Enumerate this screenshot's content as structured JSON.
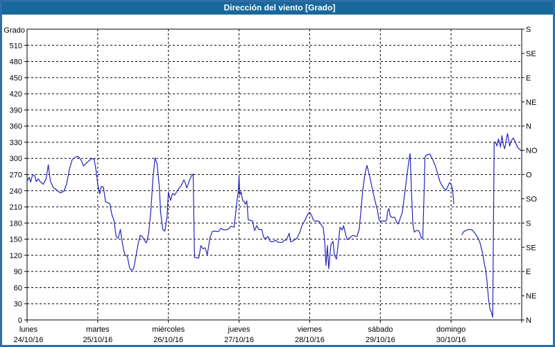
{
  "title": "Dirección del viento [Grado]",
  "colors": {
    "titlebar_bg": "#18689b",
    "titlebar_text": "#ffffff",
    "frame_border": "#2e6da8",
    "plot_bg": "#ffffff",
    "grid": "#000000",
    "axis": "#000000",
    "label_text": "#000000",
    "series_line": "#2323bb"
  },
  "chart_data": {
    "type": "line",
    "title": "Dirección del viento [Grado]",
    "ylabel": "Grado",
    "y_axis_left": {
      "min": 0,
      "max": 540,
      "step": 30,
      "last_labeled": 510
    },
    "y_axis_right": {
      "step": 45,
      "labels": [
        "N",
        "NE",
        "E",
        "SE",
        "S",
        "SO",
        "O",
        "NO",
        "N",
        "NE",
        "E",
        "SE",
        "S"
      ]
    },
    "x_axis": {
      "unit": "days",
      "min": 0,
      "max": 7,
      "days": [
        {
          "name": "lunes",
          "date": "24/10/16"
        },
        {
          "name": "martes",
          "date": "25/10/16"
        },
        {
          "name": "miércoles",
          "date": "26/10/16"
        },
        {
          "name": "jueves",
          "date": "27/10/16"
        },
        {
          "name": "viernes",
          "date": "28/10/16"
        },
        {
          "name": "sábado",
          "date": "29/10/16"
        },
        {
          "name": "domingo",
          "date": "30/10/16"
        }
      ]
    },
    "grid": "dashed",
    "series": [
      {
        "name": "Dirección del viento",
        "points": [
          [
            0.0,
            258
          ],
          [
            0.03,
            265
          ],
          [
            0.05,
            256
          ],
          [
            0.08,
            270
          ],
          [
            0.11,
            268
          ],
          [
            0.13,
            257
          ],
          [
            0.16,
            262
          ],
          [
            0.19,
            256
          ],
          [
            0.23,
            252
          ],
          [
            0.27,
            262
          ],
          [
            0.3,
            288
          ],
          [
            0.33,
            258
          ],
          [
            0.37,
            246
          ],
          [
            0.42,
            241
          ],
          [
            0.47,
            236
          ],
          [
            0.52,
            239
          ],
          [
            0.56,
            252
          ],
          [
            0.6,
            280
          ],
          [
            0.64,
            298
          ],
          [
            0.68,
            302
          ],
          [
            0.72,
            304
          ],
          [
            0.76,
            298
          ],
          [
            0.8,
            286
          ],
          [
            0.83,
            290
          ],
          [
            0.88,
            296
          ],
          [
            0.92,
            300
          ],
          [
            0.95,
            298
          ],
          [
            0.98,
            275
          ],
          [
            1.0,
            252
          ],
          [
            1.03,
            234
          ],
          [
            1.05,
            248
          ],
          [
            1.08,
            247
          ],
          [
            1.11,
            220
          ],
          [
            1.14,
            218
          ],
          [
            1.17,
            216
          ],
          [
            1.2,
            196
          ],
          [
            1.23,
            185
          ],
          [
            1.26,
            155
          ],
          [
            1.29,
            152
          ],
          [
            1.32,
            168
          ],
          [
            1.34,
            150
          ],
          [
            1.37,
            128
          ],
          [
            1.39,
            120
          ],
          [
            1.42,
            118
          ],
          [
            1.45,
            97
          ],
          [
            1.48,
            92
          ],
          [
            1.51,
            96
          ],
          [
            1.54,
            118
          ],
          [
            1.57,
            140
          ],
          [
            1.6,
            157
          ],
          [
            1.63,
            155
          ],
          [
            1.66,
            148
          ],
          [
            1.69,
            143
          ],
          [
            1.72,
            160
          ],
          [
            1.75,
            200
          ],
          [
            1.78,
            260
          ],
          [
            1.81,
            301
          ],
          [
            1.84,
            290
          ],
          [
            1.87,
            250
          ],
          [
            1.89,
            200
          ],
          [
            1.92,
            168
          ],
          [
            1.95,
            165
          ],
          [
            1.98,
            190
          ],
          [
            2.0,
            237
          ],
          [
            2.03,
            222
          ],
          [
            2.06,
            235
          ],
          [
            2.09,
            232
          ],
          [
            2.13,
            241
          ],
          [
            2.18,
            249
          ],
          [
            2.22,
            260
          ],
          [
            2.24,
            254
          ],
          [
            2.26,
            245
          ],
          [
            2.3,
            260
          ],
          [
            2.33,
            268
          ],
          [
            2.35,
            271
          ],
          [
            2.37,
            116
          ],
          [
            2.43,
            115
          ],
          [
            2.46,
            138
          ],
          [
            2.49,
            132
          ],
          [
            2.52,
            134
          ],
          [
            2.55,
            121
          ],
          [
            2.59,
            153
          ],
          [
            2.62,
            164
          ],
          [
            2.66,
            165
          ],
          [
            2.71,
            164
          ],
          [
            2.74,
            170
          ],
          [
            2.79,
            167
          ],
          [
            2.84,
            168
          ],
          [
            2.89,
            174
          ],
          [
            2.93,
            172
          ],
          [
            2.95,
            196
          ],
          [
            2.97,
            220
          ],
          [
            2.99,
            241
          ],
          [
            3.0,
            268
          ],
          [
            3.01,
            232
          ],
          [
            3.03,
            238
          ],
          [
            3.05,
            222
          ],
          [
            3.07,
            220
          ],
          [
            3.09,
            215
          ],
          [
            3.11,
            221
          ],
          [
            3.13,
            186
          ],
          [
            3.16,
            185
          ],
          [
            3.19,
            184
          ],
          [
            3.22,
            166
          ],
          [
            3.25,
            175
          ],
          [
            3.28,
            168
          ],
          [
            3.32,
            168
          ],
          [
            3.35,
            153
          ],
          [
            3.38,
            151
          ],
          [
            3.41,
            155
          ],
          [
            3.44,
            146
          ],
          [
            3.47,
            145
          ],
          [
            3.49,
            146
          ],
          [
            3.52,
            148
          ],
          [
            3.54,
            145
          ],
          [
            3.57,
            144
          ],
          [
            3.61,
            144
          ],
          [
            3.64,
            148
          ],
          [
            3.67,
            148
          ],
          [
            3.71,
            161
          ],
          [
            3.73,
            145
          ],
          [
            3.77,
            147
          ],
          [
            3.82,
            152
          ],
          [
            3.86,
            163
          ],
          [
            3.89,
            175
          ],
          [
            3.94,
            187
          ],
          [
            3.97,
            196
          ],
          [
            4.0,
            200
          ],
          [
            4.03,
            193
          ],
          [
            4.05,
            186
          ],
          [
            4.08,
            183
          ],
          [
            4.11,
            184
          ],
          [
            4.14,
            182
          ],
          [
            4.16,
            177
          ],
          [
            4.19,
            172
          ],
          [
            4.21,
            150
          ],
          [
            4.23,
            101
          ],
          [
            4.25,
            138
          ],
          [
            4.27,
            95
          ],
          [
            4.3,
            140
          ],
          [
            4.33,
            146
          ],
          [
            4.35,
            120
          ],
          [
            4.38,
            113
          ],
          [
            4.41,
            150
          ],
          [
            4.43,
            172
          ],
          [
            4.46,
            167
          ],
          [
            4.48,
            175
          ],
          [
            4.51,
            158
          ],
          [
            4.53,
            149
          ],
          [
            4.56,
            152
          ],
          [
            4.58,
            154
          ],
          [
            4.61,
            157
          ],
          [
            4.64,
            156
          ],
          [
            4.67,
            155
          ],
          [
            4.7,
            168
          ],
          [
            4.72,
            196
          ],
          [
            4.75,
            240
          ],
          [
            4.78,
            270
          ],
          [
            4.81,
            287
          ],
          [
            4.83,
            277
          ],
          [
            4.86,
            260
          ],
          [
            4.89,
            241
          ],
          [
            4.92,
            224
          ],
          [
            4.96,
            203
          ],
          [
            4.98,
            186
          ],
          [
            5.01,
            183
          ],
          [
            5.04,
            184
          ],
          [
            5.07,
            183
          ],
          [
            5.09,
            186
          ],
          [
            5.1,
            200
          ],
          [
            5.12,
            207
          ],
          [
            5.14,
            193
          ],
          [
            5.17,
            190
          ],
          [
            5.2,
            191
          ],
          [
            5.23,
            182
          ],
          [
            5.25,
            178
          ],
          [
            5.28,
            188
          ],
          [
            5.31,
            200
          ],
          [
            5.34,
            230
          ],
          [
            5.37,
            262
          ],
          [
            5.4,
            292
          ],
          [
            5.42,
            309
          ],
          [
            5.44,
            240
          ],
          [
            5.46,
            178
          ],
          [
            5.48,
            163
          ],
          [
            5.51,
            166
          ],
          [
            5.54,
            166
          ],
          [
            5.56,
            161
          ],
          [
            5.58,
            152
          ],
          [
            5.6,
            152
          ],
          [
            5.62,
            240
          ],
          [
            5.63,
            300
          ],
          [
            5.64,
            305
          ],
          [
            5.67,
            307
          ],
          [
            5.7,
            308
          ],
          [
            5.72,
            303
          ],
          [
            5.75,
            295
          ],
          [
            5.78,
            285
          ],
          [
            5.81,
            272
          ],
          [
            5.84,
            258
          ],
          [
            5.87,
            250
          ],
          [
            5.9,
            244
          ],
          [
            5.93,
            241
          ],
          [
            5.95,
            247
          ],
          [
            5.98,
            255
          ],
          [
            6.0,
            252
          ],
          [
            6.02,
            244
          ],
          [
            6.04,
            215
          ],
          [
            6.08,
            null
          ],
          [
            6.15,
            158
          ],
          [
            6.18,
            164
          ],
          [
            6.21,
            166
          ],
          [
            6.24,
            168
          ],
          [
            6.27,
            168
          ],
          [
            6.3,
            167
          ],
          [
            6.33,
            162
          ],
          [
            6.36,
            157
          ],
          [
            6.39,
            150
          ],
          [
            6.41,
            143
          ],
          [
            6.43,
            133
          ],
          [
            6.45,
            122
          ],
          [
            6.47,
            105
          ],
          [
            6.49,
            93
          ],
          [
            6.51,
            70
          ],
          [
            6.53,
            40
          ],
          [
            6.55,
            20
          ],
          [
            6.57,
            15
          ],
          [
            6.59,
            5
          ],
          [
            6.61,
            328
          ],
          [
            6.63,
            330
          ],
          [
            6.65,
            323
          ],
          [
            6.67,
            336
          ],
          [
            6.69,
            328
          ],
          [
            6.7,
            321
          ],
          [
            6.72,
            342
          ],
          [
            6.74,
            325
          ],
          [
            6.76,
            318
          ],
          [
            6.78,
            334
          ],
          [
            6.8,
            346
          ],
          [
            6.83,
            323
          ],
          [
            6.85,
            332
          ],
          [
            6.88,
            338
          ],
          [
            6.91,
            330
          ],
          [
            6.94,
            321
          ],
          [
            6.97,
            317
          ],
          [
            7.0,
            313
          ]
        ]
      }
    ]
  }
}
